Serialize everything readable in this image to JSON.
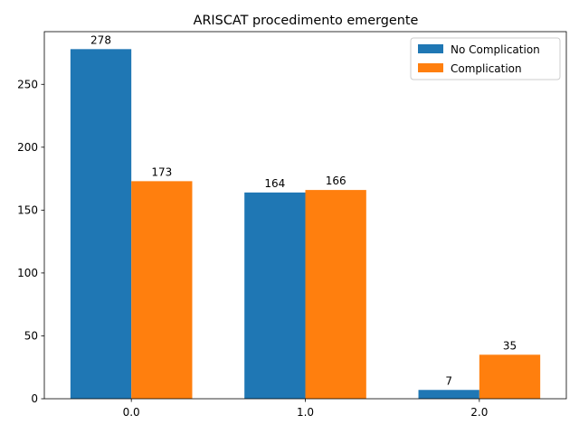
{
  "chart_data": {
    "type": "bar",
    "title": "ARISCAT procedimento emergente",
    "xlabel": "",
    "ylabel": "",
    "categories": [
      "0.0",
      "1.0",
      "2.0"
    ],
    "series": [
      {
        "name": "No Complication",
        "values": [
          278,
          164,
          7
        ],
        "color": "#1f77b4"
      },
      {
        "name": "Complication",
        "values": [
          173,
          166,
          35
        ],
        "color": "#ff7f0e"
      }
    ],
    "ylim": [
      0,
      291.9
    ],
    "yticks": [
      0,
      50,
      100,
      150,
      200,
      250
    ],
    "grid": false,
    "legend_position": "top-right"
  }
}
